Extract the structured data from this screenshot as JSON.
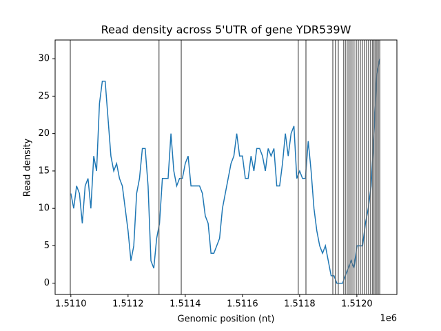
{
  "chart_data": {
    "type": "line",
    "title": "Read density across 5'UTR of gene YDR539W",
    "xlabel": "Genomic position (nt)",
    "ylabel": "Read density",
    "x_offset_label": "1e6",
    "xlim": [
      1510945,
      1512140
    ],
    "ylim": [
      -1.5,
      32.5
    ],
    "xticks": [
      {
        "value": 1511000,
        "label": "1.5110"
      },
      {
        "value": 1511200,
        "label": "1.5112"
      },
      {
        "value": 1511400,
        "label": "1.5114"
      },
      {
        "value": 1511600,
        "label": "1.5116"
      },
      {
        "value": 1511800,
        "label": "1.5118"
      },
      {
        "value": 1512000,
        "label": "1.5120"
      }
    ],
    "yticks": [
      0,
      5,
      10,
      15,
      20,
      25,
      30
    ],
    "vline_color": "#666666",
    "vlines": [
      1510998,
      1511308,
      1511386,
      1511795,
      1511822,
      1511916,
      1511925,
      1511935,
      1511954,
      1511961,
      1511969,
      1511976,
      1511983,
      1511990,
      1511998,
      1512005,
      1512012,
      1512019,
      1512027,
      1512034,
      1512041,
      1512048,
      1512055,
      1512060,
      1512065,
      1512070,
      1512075,
      1512080
    ],
    "x": [
      1511000,
      1511010,
      1511020,
      1511030,
      1511040,
      1511050,
      1511060,
      1511070,
      1511080,
      1511090,
      1511100,
      1511110,
      1511120,
      1511130,
      1511140,
      1511150,
      1511160,
      1511170,
      1511180,
      1511190,
      1511200,
      1511210,
      1511220,
      1511230,
      1511240,
      1511250,
      1511260,
      1511270,
      1511280,
      1511290,
      1511300,
      1511310,
      1511320,
      1511330,
      1511340,
      1511350,
      1511360,
      1511370,
      1511380,
      1511390,
      1511400,
      1511410,
      1511420,
      1511430,
      1511440,
      1511450,
      1511460,
      1511470,
      1511480,
      1511490,
      1511500,
      1511510,
      1511520,
      1511530,
      1511540,
      1511550,
      1511560,
      1511570,
      1511580,
      1511590,
      1511600,
      1511610,
      1511620,
      1511630,
      1511640,
      1511650,
      1511660,
      1511670,
      1511680,
      1511690,
      1511700,
      1511710,
      1511720,
      1511730,
      1511740,
      1511750,
      1511760,
      1511770,
      1511780,
      1511790,
      1511800,
      1511810,
      1511820,
      1511830,
      1511840,
      1511850,
      1511860,
      1511870,
      1511880,
      1511890,
      1511900,
      1511910,
      1511920,
      1511930,
      1511940,
      1511950,
      1511960,
      1511970,
      1511980,
      1511990,
      1512000,
      1512010,
      1512020,
      1512030,
      1512040,
      1512050,
      1512060,
      1512070,
      1512080
    ],
    "series": [
      {
        "color": "#1f77b4",
        "values": [
          12,
          10,
          13,
          12,
          8,
          13,
          14,
          10,
          17,
          15,
          24,
          27,
          27,
          22,
          17,
          15,
          16,
          14,
          13,
          10,
          7,
          3,
          5,
          12,
          14,
          18,
          18,
          13,
          3,
          2,
          6,
          8,
          14,
          14,
          14,
          20,
          15,
          13,
          14,
          14,
          16,
          17,
          13,
          13,
          13,
          13,
          12,
          9,
          8,
          4,
          4,
          5,
          6,
          10,
          12,
          14,
          16,
          17,
          20,
          17,
          17,
          14,
          14,
          17,
          15,
          18,
          18,
          17,
          15,
          18,
          17,
          18,
          13,
          13,
          16,
          20,
          17,
          20,
          21,
          14,
          15,
          14,
          14,
          19,
          15,
          10,
          7,
          5,
          4,
          5,
          3,
          1,
          1,
          0,
          0,
          0,
          1,
          2,
          3,
          2,
          5,
          5,
          5,
          8,
          10,
          13,
          20,
          28,
          30
        ]
      }
    ]
  }
}
